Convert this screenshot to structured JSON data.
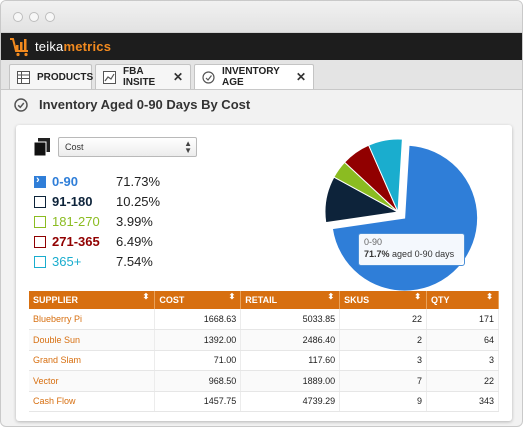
{
  "brand": {
    "prefix": "teika",
    "suffix": "metrics"
  },
  "tabs": [
    {
      "label": "PRODUCTS",
      "icon": "table-icon",
      "closable": false
    },
    {
      "label": "FBA INSITE",
      "icon": "chart-icon",
      "closable": true
    },
    {
      "label": "INVENTORY AGE",
      "icon": "clock-icon",
      "closable": true
    }
  ],
  "close_glyph": "✕",
  "heading": "Inventory Aged 0-90 Days By Cost",
  "metric_select": {
    "value": "Cost"
  },
  "legend": [
    {
      "label": "0-90",
      "pct": "71.73%",
      "color": "#2f7ed8",
      "selected": true
    },
    {
      "label": "91-180",
      "pct": "10.25%",
      "color": "#0d233a",
      "selected": false
    },
    {
      "label": "181-270",
      "pct": "3.99%",
      "color": "#8bbc21",
      "selected": false
    },
    {
      "label": "271-365",
      "pct": "6.49%",
      "color": "#910000",
      "selected": false
    },
    {
      "label": "365+",
      "pct": "7.54%",
      "color": "#1aadce",
      "selected": false
    }
  ],
  "chart_data": {
    "type": "pie",
    "categories": [
      "0-90",
      "91-180",
      "181-270",
      "271-365",
      "365+"
    ],
    "values": [
      71.73,
      10.25,
      3.99,
      6.49,
      7.54
    ],
    "colors": [
      "#2f7ed8",
      "#0d233a",
      "#8bbc21",
      "#910000",
      "#1aadce"
    ],
    "sliced": "0-90",
    "tooltip": {
      "title": "0-90",
      "value": "71.7%",
      "text": "aged 0-90 days"
    }
  },
  "table": {
    "headers": [
      "SUPPLIER",
      "COST",
      "RETAIL",
      "SKUS",
      "QTY"
    ],
    "sort_glyph": "⬍",
    "rows": [
      [
        "Blueberry Pi",
        "1668.63",
        "5033.85",
        "22",
        "171"
      ],
      [
        "Double Sun",
        "1392.00",
        "2486.40",
        "2",
        "64"
      ],
      [
        "Grand Slam",
        "71.00",
        "117.60",
        "3",
        "3"
      ],
      [
        "Vector",
        "968.50",
        "1889.00",
        "7",
        "22"
      ],
      [
        "Cash Flow",
        "1457.75",
        "4739.29",
        "9",
        "343"
      ]
    ]
  }
}
